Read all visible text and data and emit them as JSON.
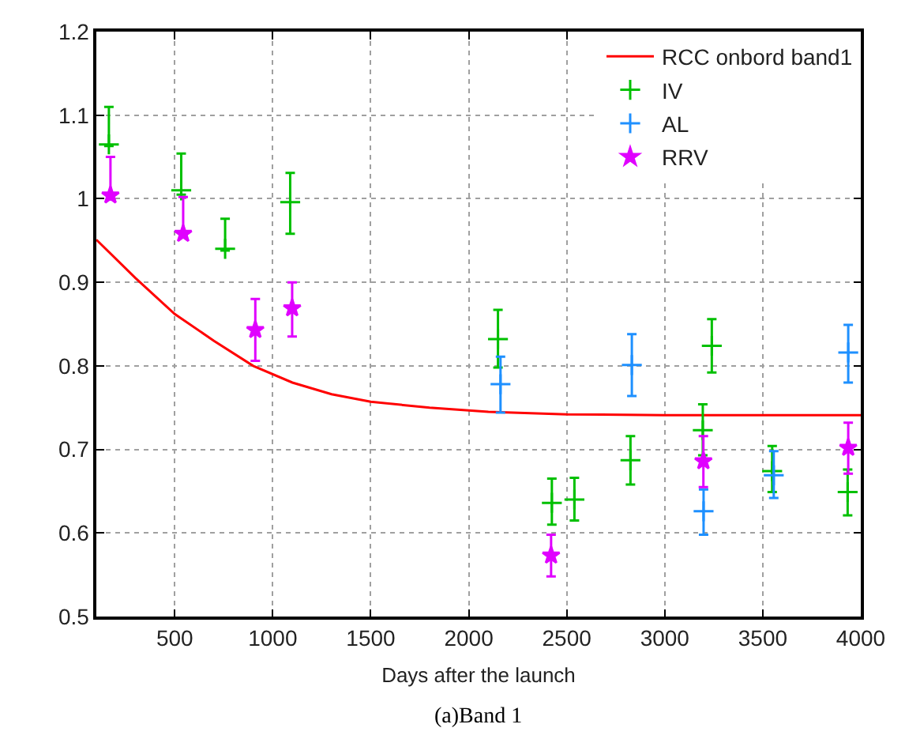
{
  "chart_data": {
    "type": "scatter",
    "xlabel": "Days after the launch",
    "annotations": [
      "(a)Band 1"
    ],
    "xlim": [
      100,
      4000
    ],
    "xticks": [
      500,
      1000,
      1500,
      2000,
      2500,
      3000,
      3500,
      4000
    ],
    "ylim": [
      0.5,
      1.2
    ],
    "yticks": [
      0.5,
      0.6,
      0.7,
      0.8,
      0.9,
      1,
      1.1,
      1.2
    ],
    "grid": true,
    "legend": "top right",
    "series": [
      {
        "name": "RCC onbord band1",
        "type": "line",
        "color": "#ff0000",
        "marker": "none",
        "x": [
          100,
          300,
          500,
          700,
          900,
          1100,
          1300,
          1500,
          1800,
          2100,
          2500,
          3000,
          4000
        ],
        "values": [
          0.951,
          0.905,
          0.862,
          0.83,
          0.8,
          0.78,
          0.766,
          0.757,
          0.75,
          0.745,
          0.742,
          0.741,
          0.741
        ]
      },
      {
        "name": "IV",
        "color": "#00c000",
        "marker": "cross",
        "x": [
          164,
          533,
          757,
          1089,
          2149,
          2424,
          2539,
          2825,
          3194,
          3240,
          3548,
          3933
        ],
        "values": [
          1.065,
          1.01,
          0.94,
          0.996,
          0.832,
          0.636,
          0.64,
          0.687,
          0.723,
          0.824,
          0.674,
          0.649
        ],
        "errors": [
          [
            1.063,
            1.11
          ],
          [
            1.005,
            1.054
          ],
          [
            0.938,
            0.976
          ],
          [
            0.958,
            1.031
          ],
          [
            0.798,
            0.867
          ],
          [
            0.61,
            0.665
          ],
          [
            0.615,
            0.666
          ],
          [
            0.658,
            0.716
          ],
          [
            0.693,
            0.754
          ],
          [
            0.792,
            0.856
          ],
          [
            0.649,
            0.704
          ],
          [
            0.621,
            0.676
          ]
        ]
      },
      {
        "name": "AL",
        "color": "#1e90ff",
        "marker": "cross",
        "x": [
          2162,
          2832,
          3198,
          3556,
          3936
        ],
        "values": [
          0.778,
          0.801,
          0.626,
          0.669,
          0.816
        ],
        "errors": [
          [
            0.744,
            0.811
          ],
          [
            0.764,
            0.838
          ],
          [
            0.598,
            0.652
          ],
          [
            0.642,
            0.698
          ],
          [
            0.78,
            0.849
          ]
        ]
      },
      {
        "name": "RRV",
        "color": "#e000ff",
        "marker": "star",
        "x": [
          172,
          543,
          911,
          1099,
          2420,
          3197,
          3936
        ],
        "values": [
          1.004,
          0.958,
          0.843,
          0.869,
          0.573,
          0.686,
          0.702
        ],
        "errors": [
          [
            1.003,
            1.05
          ],
          [
            0.956,
            1.002
          ],
          [
            0.806,
            0.88
          ],
          [
            0.835,
            0.9
          ],
          [
            0.548,
            0.598
          ],
          [
            0.655,
            0.716
          ],
          [
            0.671,
            0.732
          ]
        ]
      }
    ]
  }
}
